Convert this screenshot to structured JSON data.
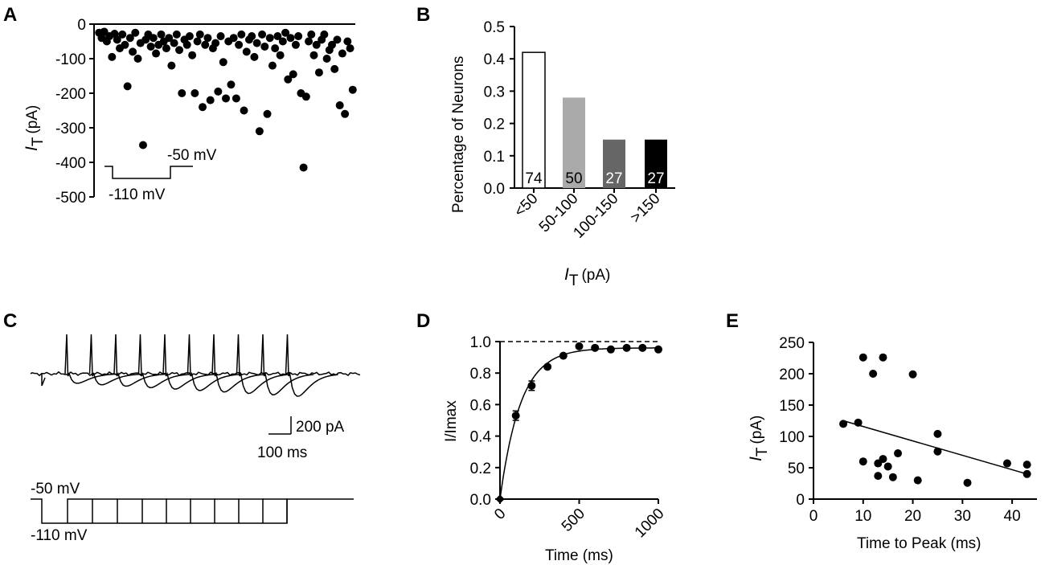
{
  "panels": {
    "A": {
      "label": "A",
      "chart_data": {
        "type": "scatter",
        "xlabel": "",
        "ylabel": "I_T (pA)",
        "ylabel_main": "I",
        "ylabel_sub": "T",
        "ylabel_unit": "(pA)",
        "ylim": [
          -500,
          0
        ],
        "yticks": [
          "0",
          "-100",
          "-200",
          "-300",
          "-400",
          "-500"
        ],
        "xlim": [
          0,
          200
        ],
        "points": [
          [
            2,
            -25
          ],
          [
            4,
            -40
          ],
          [
            6,
            -22
          ],
          [
            8,
            -50
          ],
          [
            10,
            -35
          ],
          [
            12,
            -95
          ],
          [
            14,
            -28
          ],
          [
            16,
            -45
          ],
          [
            18,
            -70
          ],
          [
            20,
            -30
          ],
          [
            22,
            -60
          ],
          [
            24,
            -180
          ],
          [
            26,
            -40
          ],
          [
            28,
            -80
          ],
          [
            30,
            -25
          ],
          [
            32,
            -100
          ],
          [
            34,
            -55
          ],
          [
            36,
            -350
          ],
          [
            38,
            -45
          ],
          [
            40,
            -30
          ],
          [
            42,
            -65
          ],
          [
            44,
            -40
          ],
          [
            46,
            -85
          ],
          [
            48,
            -60
          ],
          [
            50,
            -30
          ],
          [
            52,
            -50
          ],
          [
            54,
            -70
          ],
          [
            56,
            -40
          ],
          [
            58,
            -120
          ],
          [
            60,
            -55
          ],
          [
            62,
            -30
          ],
          [
            64,
            -75
          ],
          [
            66,
            -200
          ],
          [
            68,
            -45
          ],
          [
            70,
            -60
          ],
          [
            72,
            -35
          ],
          [
            74,
            -90
          ],
          [
            76,
            -200
          ],
          [
            78,
            -50
          ],
          [
            80,
            -30
          ],
          [
            82,
            -240
          ],
          [
            84,
            -60
          ],
          [
            86,
            -40
          ],
          [
            88,
            -220
          ],
          [
            90,
            -70
          ],
          [
            92,
            -55
          ],
          [
            94,
            -195
          ],
          [
            96,
            -35
          ],
          [
            98,
            -110
          ],
          [
            100,
            -215
          ],
          [
            102,
            -50
          ],
          [
            104,
            -175
          ],
          [
            106,
            -40
          ],
          [
            108,
            -215
          ],
          [
            110,
            -60
          ],
          [
            112,
            -30
          ],
          [
            114,
            -250
          ],
          [
            116,
            -80
          ],
          [
            118,
            -45
          ],
          [
            120,
            -35
          ],
          [
            122,
            -95
          ],
          [
            124,
            -55
          ],
          [
            126,
            -310
          ],
          [
            128,
            -30
          ],
          [
            130,
            -65
          ],
          [
            132,
            -260
          ],
          [
            134,
            -40
          ],
          [
            136,
            -120
          ],
          [
            138,
            -70
          ],
          [
            140,
            -35
          ],
          [
            142,
            -90
          ],
          [
            144,
            -50
          ],
          [
            146,
            -25
          ],
          [
            148,
            -160
          ],
          [
            150,
            -40
          ],
          [
            152,
            -145
          ],
          [
            154,
            -60
          ],
          [
            156,
            -35
          ],
          [
            158,
            -200
          ],
          [
            160,
            -415
          ],
          [
            162,
            -210
          ],
          [
            164,
            -50
          ],
          [
            166,
            -30
          ],
          [
            168,
            -90
          ],
          [
            170,
            -60
          ],
          [
            172,
            -140
          ],
          [
            174,
            -45
          ],
          [
            176,
            -30
          ],
          [
            178,
            -100
          ],
          [
            180,
            -75
          ],
          [
            182,
            -60
          ],
          [
            184,
            -130
          ],
          [
            186,
            -45
          ],
          [
            188,
            -235
          ],
          [
            190,
            -85
          ],
          [
            192,
            -260
          ],
          [
            194,
            -50
          ],
          [
            196,
            -70
          ],
          [
            198,
            -190
          ]
        ],
        "inset": {
          "hold": "-50 mV",
          "step": "-110 mV"
        }
      }
    },
    "B": {
      "label": "B",
      "chart_data": {
        "type": "bar",
        "title": "",
        "categories": [
          "<50",
          "50-100",
          "100-150",
          ">150"
        ],
        "values": [
          0.42,
          0.28,
          0.15,
          0.15
        ],
        "counts": [
          "74",
          "50",
          "27",
          "27"
        ],
        "colors": [
          "#ffffff",
          "#aaaaaa",
          "#666666",
          "#000000"
        ],
        "count_colors": [
          "#000000",
          "#000000",
          "#ffffff",
          "#ffffff"
        ],
        "ylabel": "Percentage of Neurons",
        "xlabel_main": "I",
        "xlabel_sub": "T",
        "xlabel_unit": "(pA)",
        "ylim": [
          0,
          0.5
        ],
        "yticks": [
          "0.0",
          "0.1",
          "0.2",
          "0.3",
          "0.4",
          "0.5"
        ]
      }
    },
    "C": {
      "label": "C",
      "scale_current": "200 pA",
      "scale_time": "100 ms",
      "protocol_hold": "-50 mV",
      "protocol_step": "-110 mV",
      "trace_count": 10
    },
    "D": {
      "label": "D",
      "chart_data": {
        "type": "line",
        "xlabel": "Time (ms)",
        "ylabel": "I/Imax",
        "xlim": [
          0,
          1000
        ],
        "ylim": [
          0,
          1.0
        ],
        "xticks": [
          "0",
          "500",
          "1000"
        ],
        "yticks": [
          "0.0",
          "0.2",
          "0.4",
          "0.6",
          "0.8",
          "1.0"
        ],
        "points": [
          {
            "x": 0,
            "y": 0.0,
            "err": 0
          },
          {
            "x": 100,
            "y": 0.53,
            "err": 0.03
          },
          {
            "x": 200,
            "y": 0.72,
            "err": 0.03
          },
          {
            "x": 300,
            "y": 0.84,
            "err": 0.01
          },
          {
            "x": 400,
            "y": 0.91,
            "err": 0.01
          },
          {
            "x": 500,
            "y": 0.97,
            "err": 0.0
          },
          {
            "x": 600,
            "y": 0.96,
            "err": 0.0
          },
          {
            "x": 700,
            "y": 0.95,
            "err": 0.0
          },
          {
            "x": 800,
            "y": 0.96,
            "err": 0.0
          },
          {
            "x": 900,
            "y": 0.96,
            "err": 0.0
          },
          {
            "x": 1000,
            "y": 0.95,
            "err": 0.0
          }
        ],
        "fit": {
          "amplitude": 0.96,
          "tau_ms": 130
        },
        "reference_line": 1.0
      }
    },
    "E": {
      "label": "E",
      "chart_data": {
        "type": "scatter",
        "xlabel": "Time to Peak (ms)",
        "ylabel_main": "I",
        "ylabel_sub": "T",
        "ylabel_unit": "(pA)",
        "xlim": [
          0,
          45
        ],
        "ylim": [
          0,
          250
        ],
        "xticks": [
          "0",
          "10",
          "20",
          "30",
          "40"
        ],
        "yticks": [
          "0",
          "50",
          "100",
          "150",
          "200",
          "250"
        ],
        "points": [
          [
            6,
            120
          ],
          [
            9,
            122
          ],
          [
            10,
            60
          ],
          [
            10,
            226
          ],
          [
            12,
            200
          ],
          [
            13,
            37
          ],
          [
            13,
            57
          ],
          [
            14,
            226
          ],
          [
            14,
            64
          ],
          [
            15,
            52
          ],
          [
            16,
            35
          ],
          [
            17,
            73
          ],
          [
            20,
            199
          ],
          [
            21,
            30
          ],
          [
            25,
            104
          ],
          [
            25,
            76
          ],
          [
            31,
            26
          ],
          [
            39,
            57
          ],
          [
            43,
            55
          ],
          [
            43,
            40
          ]
        ],
        "regression": [
          [
            6,
            125
          ],
          [
            43,
            40
          ]
        ]
      }
    }
  }
}
